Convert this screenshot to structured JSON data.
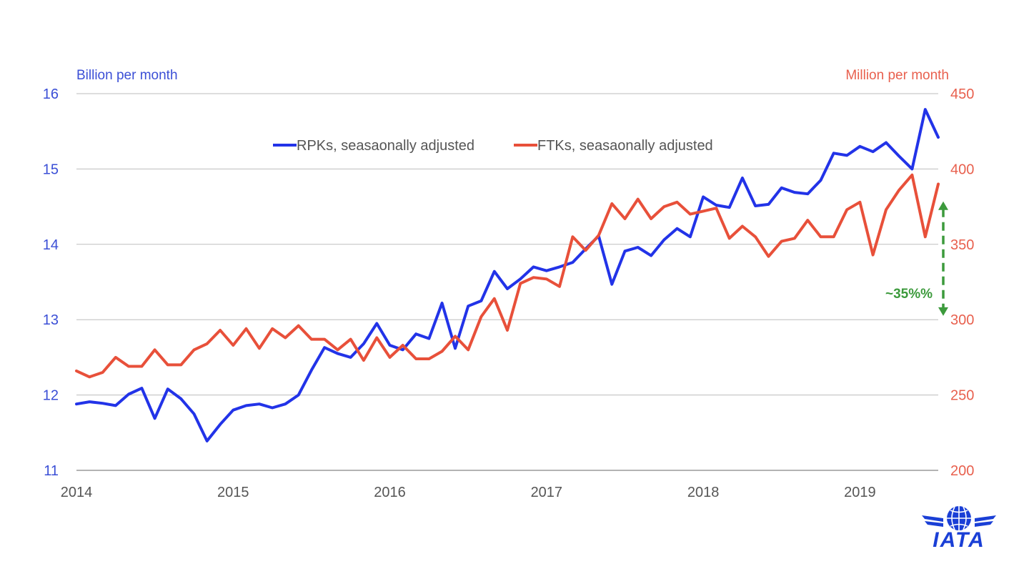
{
  "chart_data": {
    "type": "line",
    "title": "",
    "x_ticks": [
      "2014",
      "2015",
      "2016",
      "2017",
      "2018",
      "2019"
    ],
    "x_range": [
      2014.0,
      2019.5
    ],
    "y_left": {
      "label": "Billion per month",
      "range": [
        11,
        16
      ],
      "ticks": [
        "11",
        "12",
        "13",
        "14",
        "15",
        "16"
      ]
    },
    "y_right": {
      "label": "Million per month",
      "range": [
        200,
        450
      ],
      "ticks": [
        "200",
        "250",
        "300",
        "350",
        "400",
        "450"
      ]
    },
    "grid": true,
    "legend_position": "top-center",
    "series": [
      {
        "name": "RPKs, seasaonally adjusted",
        "axis": "left",
        "color": "#2233e8",
        "x": [
          2014.0,
          2014.083,
          2014.167,
          2014.25,
          2014.333,
          2014.417,
          2014.5,
          2014.583,
          2014.667,
          2014.75,
          2014.833,
          2014.917,
          2015.0,
          2015.083,
          2015.167,
          2015.25,
          2015.333,
          2015.417,
          2015.5,
          2015.583,
          2015.667,
          2015.75,
          2015.833,
          2015.917,
          2016.0,
          2016.083,
          2016.167,
          2016.25,
          2016.333,
          2016.417,
          2016.5,
          2016.583,
          2016.667,
          2016.75,
          2016.833,
          2016.917,
          2017.0,
          2017.083,
          2017.167,
          2017.25,
          2017.333,
          2017.417,
          2017.5,
          2017.583,
          2017.667,
          2017.75,
          2017.833,
          2017.917,
          2018.0,
          2018.083,
          2018.167,
          2018.25,
          2018.333,
          2018.417,
          2018.5,
          2018.583,
          2018.667,
          2018.75,
          2018.833,
          2018.917,
          2019.0,
          2019.083,
          2019.167,
          2019.25,
          2019.333,
          2019.417,
          2019.5
        ],
        "y": [
          11.88,
          11.91,
          11.89,
          11.86,
          12.01,
          12.09,
          11.69,
          12.08,
          11.95,
          11.75,
          11.39,
          11.61,
          11.8,
          11.86,
          11.88,
          11.83,
          11.88,
          12.0,
          12.33,
          12.63,
          12.55,
          12.5,
          12.68,
          12.95,
          12.66,
          12.6,
          12.81,
          12.75,
          13.22,
          12.62,
          13.18,
          13.25,
          13.64,
          13.41,
          13.54,
          13.7,
          13.65,
          13.7,
          13.76,
          13.94,
          14.11,
          13.47,
          13.91,
          13.96,
          13.85,
          14.06,
          14.21,
          14.1,
          14.63,
          14.52,
          14.49,
          14.88,
          14.51,
          14.53,
          14.75,
          14.69,
          14.67,
          14.85,
          15.21,
          15.18,
          15.3,
          15.23,
          15.35,
          15.17,
          15.0,
          15.79,
          15.42
        ]
      },
      {
        "name": "FTKs, seasaonally adjusted",
        "axis": "right",
        "color": "#e8503a",
        "x": [
          2014.0,
          2014.083,
          2014.167,
          2014.25,
          2014.333,
          2014.417,
          2014.5,
          2014.583,
          2014.667,
          2014.75,
          2014.833,
          2014.917,
          2015.0,
          2015.083,
          2015.167,
          2015.25,
          2015.333,
          2015.417,
          2015.5,
          2015.583,
          2015.667,
          2015.75,
          2015.833,
          2015.917,
          2016.0,
          2016.083,
          2016.167,
          2016.25,
          2016.333,
          2016.417,
          2016.5,
          2016.583,
          2016.667,
          2016.75,
          2016.833,
          2016.917,
          2017.0,
          2017.083,
          2017.167,
          2017.25,
          2017.333,
          2017.417,
          2017.5,
          2017.583,
          2017.667,
          2017.75,
          2017.833,
          2017.917,
          2018.0,
          2018.083,
          2018.167,
          2018.25,
          2018.333,
          2018.417,
          2018.5,
          2018.583,
          2018.667,
          2018.75,
          2018.833,
          2018.917,
          2019.0,
          2019.083,
          2019.167,
          2019.25,
          2019.333,
          2019.417,
          2019.5
        ],
        "y": [
          266,
          262,
          265,
          275,
          269,
          269,
          280,
          270,
          270,
          280,
          284,
          293,
          283,
          294,
          281,
          294,
          288,
          296,
          287,
          287,
          280,
          287,
          273,
          288,
          275,
          283,
          274,
          274,
          279,
          289,
          280,
          302,
          314,
          293,
          324,
          328,
          327,
          322,
          355,
          346,
          356,
          377,
          367,
          380,
          367,
          375,
          378,
          370,
          372,
          374,
          354,
          362,
          355,
          342,
          352,
          354,
          366,
          355,
          355,
          373,
          378,
          343,
          373,
          386,
          396,
          355,
          390
        ]
      }
    ],
    "annotations": [
      {
        "text": "~35%%",
        "from_left_value": 14.57,
        "to_left_value": 13.05,
        "at_x": 2019.5,
        "color": "#3c9a3c"
      }
    ]
  },
  "logo": {
    "text": "IATA"
  }
}
